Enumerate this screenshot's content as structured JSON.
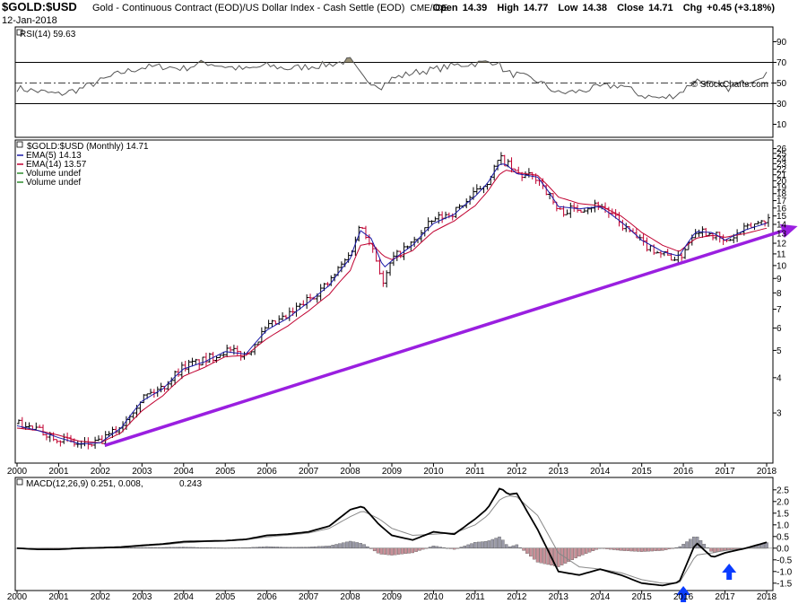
{
  "header": {
    "symbol": "$GOLD:$USD",
    "description": "Gold - Continuous Contract (EOD)/US Dollar Index - Cash Settle (EOD)",
    "exchange": "CME/ICE",
    "date": "12-Jan-2018",
    "open_label": "Open",
    "open": "14.39",
    "high_label": "High",
    "high": "14.77",
    "low_label": "Low",
    "low": "14.38",
    "close_label": "Close",
    "close": "14.71",
    "chg_label": "Chg",
    "chg": "+0.45 (+3.18%)"
  },
  "watermark": "© StockCharts.com",
  "rsi_panel": {
    "label": "RSI(14) 59.63",
    "ticks": [
      "90",
      "70",
      "50",
      "30",
      "10"
    ],
    "overbought": 70,
    "oversold": 30,
    "mid": 50
  },
  "price_panel": {
    "legend": [
      {
        "text": "$GOLD:$USD (Monthly) 14.71",
        "color": "#000000"
      },
      {
        "text": "EMA(5) 14.13",
        "color": "#1a1aa8"
      },
      {
        "text": "EMA(14) 13.57",
        "color": "#c00030"
      },
      {
        "text": "Volume undef",
        "color": "#2e8b2e"
      },
      {
        "text": "Volume undef",
        "color": "#2e8b2e"
      }
    ],
    "y_ticks": [
      "3",
      "4",
      "5",
      "6",
      "7",
      "8",
      "9",
      "10",
      "11",
      "12",
      "13",
      "14",
      "15",
      "16",
      "17",
      "18",
      "19",
      "20",
      "21",
      "22",
      "23",
      "24",
      "25",
      "26"
    ]
  },
  "macd_panel": {
    "label_main": "MACD(12,26,9) 0.251, 0.008,",
    "label_hist": "0.243",
    "ticks": [
      "2.5",
      "2.0",
      "1.5",
      "1.0",
      "0.5",
      "0.0",
      "-0.5",
      "-1.0",
      "-1.5"
    ]
  },
  "x_axis": [
    "2000",
    "2001",
    "2002",
    "2003",
    "2004",
    "2005",
    "2006",
    "2007",
    "2008",
    "2009",
    "2010",
    "2011",
    "2012",
    "2013",
    "2014",
    "2015",
    "2016",
    "2017",
    "2018"
  ],
  "colors": {
    "trendline": "#9a1fe0",
    "arrow": "#0a3cff",
    "ema5": "#1a1aa8",
    "ema14": "#c00030",
    "bar_up": "#000000",
    "bar_down": "#c00030",
    "hist_pos": "#9a9aa8",
    "hist_neg": "#c89098",
    "rsi_fill": "#8a8060",
    "panel_bg": "#ffffff"
  },
  "chart_data": [
    {
      "type": "line",
      "title": "RSI(14) 59.63",
      "x": [
        2000,
        2000.5,
        2001,
        2001.5,
        2002,
        2002.5,
        2003,
        2003.5,
        2004,
        2004.5,
        2005,
        2005.5,
        2006,
        2006.5,
        2007,
        2007.5,
        2008,
        2008.3,
        2008.75,
        2009,
        2009.5,
        2010,
        2010.5,
        2011,
        2011.5,
        2011.75,
        2012,
        2012.5,
        2013,
        2013.5,
        2014,
        2014.5,
        2015,
        2015.5,
        2015.9,
        2016.3,
        2016.7,
        2017,
        2017.5,
        2018
      ],
      "values": [
        45,
        42,
        39,
        44,
        52,
        60,
        65,
        66,
        64,
        70,
        66,
        63,
        67,
        64,
        66,
        68,
        72,
        55,
        47,
        54,
        60,
        63,
        67,
        69,
        71,
        60,
        58,
        52,
        40,
        42,
        46,
        48,
        38,
        35,
        40,
        53,
        49,
        44,
        51,
        60
      ],
      "ylim": [
        0,
        100
      ]
    },
    {
      "type": "line",
      "title": "$GOLD:$USD (Monthly) 14.71",
      "ylabel": "",
      "log_scale": true,
      "x": [
        2000,
        2000.5,
        2001,
        2001.5,
        2002,
        2002.5,
        2003,
        2003.5,
        2004,
        2004.5,
        2005,
        2005.5,
        2006,
        2006.5,
        2007,
        2007.5,
        2008,
        2008.25,
        2008.5,
        2008.8,
        2009,
        2009.5,
        2010,
        2010.5,
        2011,
        2011.3,
        2011.6,
        2011.75,
        2012,
        2012.5,
        2013,
        2013.5,
        2014,
        2014.5,
        2015,
        2015.5,
        2015.9,
        2016.3,
        2016.7,
        2017,
        2017.5,
        2018
      ],
      "series": [
        {
          "name": "$GOLD:$USD (Monthly) 14.71",
          "values": [
            2.75,
            2.6,
            2.45,
            2.3,
            2.35,
            2.7,
            3.4,
            3.7,
            4.4,
            4.6,
            5.0,
            4.8,
            6.0,
            6.6,
            7.6,
            8.7,
            11.0,
            14.0,
            12.0,
            8.5,
            10.5,
            12.0,
            14.5,
            15.5,
            18.0,
            20.0,
            24.0,
            23.0,
            21.0,
            20.5,
            15.5,
            16.0,
            16.5,
            14.0,
            12.0,
            11.0,
            10.5,
            13.5,
            13.0,
            12.0,
            13.5,
            14.71
          ]
        },
        {
          "name": "EMA(5) 14.13",
          "values": [
            2.7,
            2.6,
            2.45,
            2.33,
            2.35,
            2.65,
            3.3,
            3.65,
            4.3,
            4.55,
            4.95,
            4.85,
            5.9,
            6.5,
            7.4,
            8.5,
            10.6,
            13.3,
            12.5,
            9.8,
            10.4,
            11.8,
            14.1,
            15.2,
            17.6,
            19.6,
            23.0,
            22.8,
            21.2,
            20.6,
            16.2,
            15.9,
            16.2,
            14.3,
            12.3,
            11.2,
            10.8,
            13.2,
            13.1,
            12.3,
            13.4,
            14.13
          ]
        },
        {
          "name": "EMA(14) 13.57",
          "values": [
            2.65,
            2.6,
            2.5,
            2.38,
            2.35,
            2.55,
            3.05,
            3.45,
            4.05,
            4.35,
            4.75,
            4.8,
            5.5,
            6.1,
            6.9,
            7.9,
            9.6,
            11.8,
            12.0,
            10.8,
            10.5,
            11.3,
            13.2,
            14.4,
            16.3,
            18.3,
            21.2,
            21.8,
            21.4,
            20.9,
            17.5,
            16.6,
            16.3,
            15.0,
            13.1,
            11.8,
            11.2,
            12.5,
            12.8,
            12.6,
            13.0,
            13.57
          ]
        }
      ],
      "trendline": {
        "x": [
          2002,
          2018.2
        ],
        "y": [
          2.3,
          13.5
        ]
      },
      "y_ticks": [
        3,
        4,
        5,
        6,
        7,
        8,
        9,
        10,
        11,
        12,
        13,
        14,
        15,
        16,
        17,
        18,
        19,
        20,
        21,
        22,
        23,
        24,
        25,
        26
      ]
    },
    {
      "type": "line",
      "title": "MACD(12,26,9) 0.251, 0.008, 0.243",
      "x": [
        2000,
        2000.5,
        2001,
        2001.5,
        2002,
        2002.5,
        2003,
        2003.5,
        2004,
        2004.5,
        2005,
        2005.5,
        2006,
        2006.5,
        2007,
        2007.5,
        2008,
        2008.3,
        2008.7,
        2009,
        2009.5,
        2010,
        2010.5,
        2011,
        2011.3,
        2011.6,
        2011.8,
        2012,
        2012.5,
        2013,
        2013.5,
        2014,
        2014.5,
        2015,
        2015.5,
        2015.9,
        2016.3,
        2016.7,
        2017,
        2017.5,
        2018
      ],
      "series": [
        {
          "name": "MACD",
          "values": [
            0.0,
            -0.05,
            -0.05,
            0.0,
            0.02,
            0.05,
            0.12,
            0.18,
            0.28,
            0.3,
            0.32,
            0.38,
            0.55,
            0.6,
            0.7,
            0.95,
            1.65,
            1.8,
            1.0,
            0.55,
            0.35,
            0.7,
            0.6,
            1.25,
            1.7,
            2.6,
            2.3,
            2.35,
            0.8,
            -1.0,
            -1.15,
            -0.9,
            -1.15,
            -1.5,
            -1.6,
            -1.45,
            0.25,
            -0.4,
            -0.2,
            0.0,
            0.25
          ]
        },
        {
          "name": "Signal",
          "values": [
            0.0,
            -0.02,
            -0.04,
            -0.02,
            0.0,
            0.03,
            0.09,
            0.15,
            0.23,
            0.28,
            0.31,
            0.36,
            0.48,
            0.56,
            0.65,
            0.85,
            1.35,
            1.6,
            1.25,
            0.85,
            0.55,
            0.6,
            0.65,
            1.0,
            1.4,
            2.1,
            2.25,
            2.2,
            1.4,
            -0.2,
            -0.8,
            -0.9,
            -1.05,
            -1.35,
            -1.5,
            -1.5,
            -0.3,
            -0.2,
            -0.1,
            0.0,
            0.0
          ]
        }
      ],
      "histogram": [
        0.0,
        -0.03,
        -0.01,
        0.02,
        0.02,
        0.02,
        0.03,
        0.03,
        0.05,
        0.02,
        0.01,
        0.02,
        0.07,
        0.04,
        0.05,
        0.1,
        0.3,
        0.2,
        -0.25,
        -0.3,
        -0.2,
        0.1,
        -0.05,
        0.25,
        0.3,
        0.5,
        0.05,
        0.15,
        -0.6,
        -0.8,
        -0.35,
        0.0,
        -0.1,
        -0.15,
        -0.1,
        0.05,
        0.55,
        -0.2,
        -0.1,
        0.0,
        0.24
      ],
      "ylim": [
        -1.7,
        2.8
      ],
      "arrows_x": [
        2016.0,
        2017.1
      ]
    }
  ]
}
